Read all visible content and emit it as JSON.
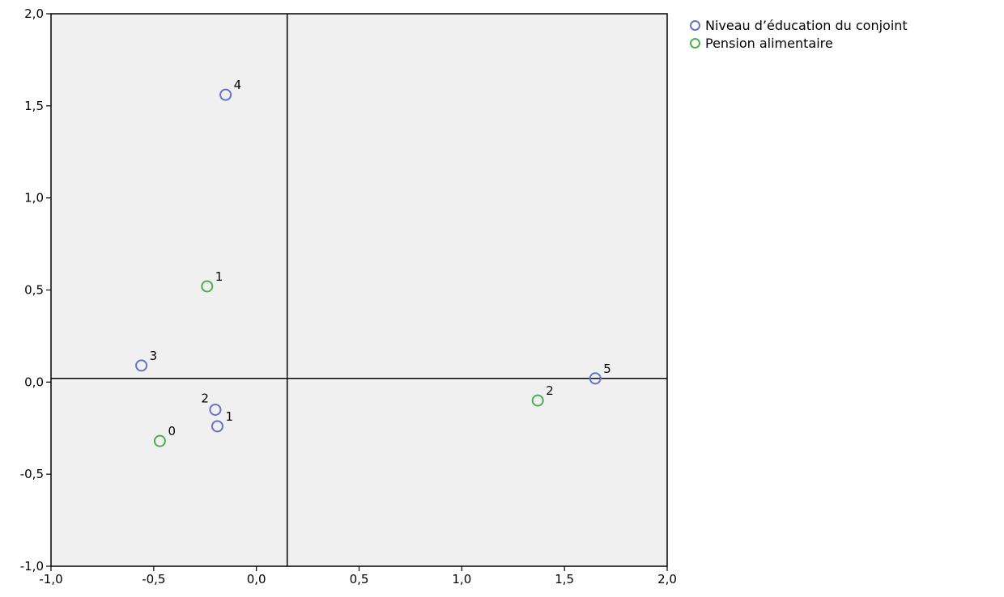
{
  "chart_data": {
    "type": "scatter",
    "xlim": [
      -1.0,
      2.0
    ],
    "ylim": [
      -1.0,
      2.0
    ],
    "x_ticks": [
      -1.0,
      -0.5,
      0.0,
      0.5,
      1.0,
      1.5,
      2.0
    ],
    "y_ticks": [
      -1.0,
      -0.5,
      0.0,
      0.5,
      1.0,
      1.5,
      2.0
    ],
    "x_tick_labels": [
      "-1,0",
      "-0,5",
      "0,0",
      "0,5",
      "1,0",
      "1,5",
      "2,0"
    ],
    "y_tick_labels": [
      "-1,0",
      "-0,5",
      "0,0",
      "0,5",
      "1,0",
      "1,5",
      "2,0"
    ],
    "reference_lines": {
      "x": 0.15,
      "y": 0.02
    },
    "grid": false,
    "legend_position": "right",
    "plot_background": "#f0f0f0",
    "series": [
      {
        "name": "Niveau d’éducation du conjoint",
        "color": "#6673c6",
        "points": [
          {
            "label": "4",
            "x": -0.15,
            "y": 1.56
          },
          {
            "label": "3",
            "x": -0.56,
            "y": 0.09
          },
          {
            "label": "2",
            "x": -0.2,
            "y": -0.15
          },
          {
            "label": "1",
            "x": -0.19,
            "y": -0.24
          },
          {
            "label": "5",
            "x": 1.65,
            "y": 0.02
          }
        ]
      },
      {
        "name": "Pension alimentaire",
        "color": "#4caf50",
        "points": [
          {
            "label": "1",
            "x": -0.24,
            "y": 0.52
          },
          {
            "label": "0",
            "x": -0.47,
            "y": -0.32
          },
          {
            "label": "2",
            "x": 1.37,
            "y": -0.1
          }
        ]
      }
    ]
  }
}
